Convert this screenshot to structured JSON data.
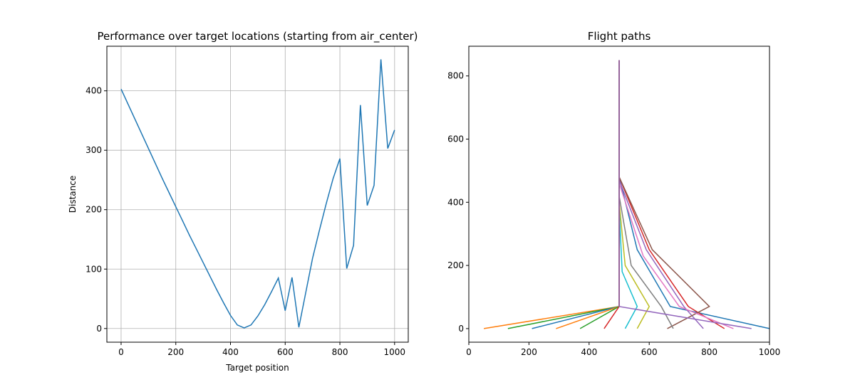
{
  "chart_data": [
    {
      "type": "line",
      "title": "Performance over target locations (starting from air_center)",
      "xlabel": "Target position",
      "ylabel": "Distance",
      "x": [
        0,
        25,
        50,
        75,
        100,
        125,
        150,
        175,
        200,
        225,
        250,
        275,
        300,
        325,
        350,
        375,
        400,
        425,
        450,
        475,
        500,
        525,
        550,
        575,
        600,
        625,
        650,
        675,
        700,
        725,
        750,
        775,
        800,
        825,
        850,
        875,
        900,
        925,
        950,
        975,
        1000
      ],
      "values": [
        403,
        378,
        353,
        328,
        303,
        278,
        253,
        229,
        205,
        181,
        157,
        134,
        111,
        88,
        65,
        43,
        22,
        6,
        1,
        6,
        21,
        40,
        62,
        85,
        30,
        86,
        2,
        60,
        118,
        165,
        210,
        252,
        286,
        101,
        140,
        376,
        207,
        241,
        453,
        303,
        334
      ],
      "color": "#1f77b4",
      "grid": true,
      "xlim": [
        -52,
        1050
      ],
      "ylim": [
        -23,
        475
      ],
      "xticks": [
        0,
        200,
        400,
        600,
        800,
        1000
      ],
      "yticks": [
        0,
        100,
        200,
        300,
        400
      ]
    },
    {
      "type": "line",
      "title": "Flight paths",
      "grid": false,
      "xlim": [
        0,
        1000
      ],
      "ylim": [
        -43,
        894
      ],
      "xticks": [
        0,
        200,
        400,
        600,
        800,
        1000
      ],
      "yticks": [
        0,
        200,
        400,
        600,
        800
      ],
      "series": [
        {
          "color": "#1f77b4",
          "x": [
            500,
            500,
            560,
            670,
            1000
          ],
          "values": [
            850,
            480,
            250,
            70,
            0
          ]
        },
        {
          "color": "#ff7f0e",
          "x": [
            500,
            500,
            500,
            50
          ],
          "values": [
            850,
            450,
            70,
            0
          ]
        },
        {
          "color": "#2ca02c",
          "x": [
            500,
            500,
            500,
            130
          ],
          "values": [
            850,
            450,
            70,
            0
          ]
        },
        {
          "color": "#d62728",
          "x": [
            500,
            500,
            600,
            730,
            850
          ],
          "values": [
            850,
            480,
            250,
            70,
            0
          ]
        },
        {
          "color": "#9467bd",
          "x": [
            500,
            500,
            590,
            715,
            780
          ],
          "values": [
            850,
            470,
            250,
            70,
            0
          ]
        },
        {
          "color": "#8c564b",
          "x": [
            500,
            500,
            610,
            800,
            660
          ],
          "values": [
            850,
            480,
            250,
            70,
            0
          ]
        },
        {
          "color": "#e377c2",
          "x": [
            500,
            500,
            580,
            700,
            880
          ],
          "values": [
            850,
            460,
            230,
            70,
            0
          ]
        },
        {
          "color": "#7f7f7f",
          "x": [
            500,
            500,
            540,
            640,
            680
          ],
          "values": [
            850,
            420,
            200,
            70,
            0
          ]
        },
        {
          "color": "#bcbd22",
          "x": [
            500,
            500,
            520,
            600,
            560
          ],
          "values": [
            850,
            400,
            200,
            70,
            0
          ]
        },
        {
          "color": "#17becf",
          "x": [
            500,
            500,
            510,
            560,
            520
          ],
          "values": [
            850,
            380,
            180,
            70,
            0
          ]
        },
        {
          "color": "#1f77b4",
          "x": [
            500,
            500,
            500,
            210
          ],
          "values": [
            850,
            450,
            70,
            0
          ]
        },
        {
          "color": "#ff7f0e",
          "x": [
            500,
            500,
            500,
            290
          ],
          "values": [
            850,
            450,
            70,
            0
          ]
        },
        {
          "color": "#2ca02c",
          "x": [
            500,
            500,
            500,
            370
          ],
          "values": [
            850,
            450,
            70,
            0
          ]
        },
        {
          "color": "#d62728",
          "x": [
            500,
            500,
            500,
            450
          ],
          "values": [
            850,
            450,
            70,
            0
          ]
        },
        {
          "color": "#9467bd",
          "x": [
            500,
            500,
            500,
            940
          ],
          "values": [
            850,
            450,
            70,
            0
          ]
        }
      ]
    }
  ]
}
